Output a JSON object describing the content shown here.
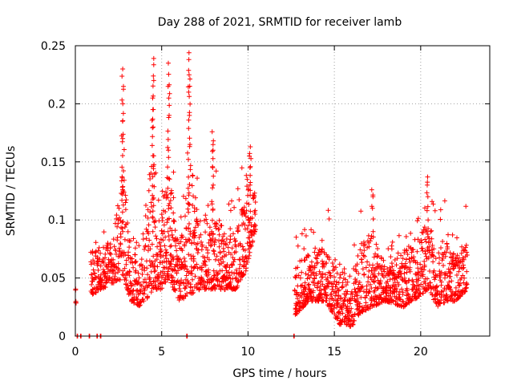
{
  "chart_data": {
    "type": "scatter",
    "title": "Day 288 of 2021, SRMTID for receiver lamb",
    "xlabel": "GPS time / hours",
    "ylabel": "SRMTID / TECUs",
    "xlim": [
      0,
      24
    ],
    "ylim": [
      0,
      0.25
    ],
    "x_ticks": [
      0,
      5,
      10,
      15,
      20
    ],
    "x_tick_labels": [
      "0",
      "5",
      "10",
      "15",
      "20"
    ],
    "y_ticks": [
      0,
      0.05,
      0.1,
      0.15,
      0.2,
      0.25
    ],
    "y_tick_labels": [
      "0",
      "0.05",
      "0.1",
      "0.15",
      "0.2",
      "0.25"
    ],
    "grid": true,
    "marker": "plus",
    "color": "#ff0000",
    "series": [
      {
        "name": "SRMTID",
        "description": "dense cloud of per-satellite SRMTID values, approx. 1-minute sampling over two observing blocks",
        "envelope": [
          {
            "x": 0.0,
            "low": 0.028,
            "high": 0.048
          },
          {
            "x": 0.9,
            "low": 0.035,
            "high": 0.095
          },
          {
            "x": 1.5,
            "low": 0.04,
            "high": 0.1
          },
          {
            "x": 2.2,
            "low": 0.045,
            "high": 0.11
          },
          {
            "x": 2.8,
            "low": 0.05,
            "high": 0.23
          },
          {
            "x": 3.2,
            "low": 0.03,
            "high": 0.12
          },
          {
            "x": 3.8,
            "low": 0.025,
            "high": 0.11
          },
          {
            "x": 4.5,
            "low": 0.04,
            "high": 0.24
          },
          {
            "x": 5.0,
            "low": 0.04,
            "high": 0.13
          },
          {
            "x": 5.4,
            "low": 0.05,
            "high": 0.235
          },
          {
            "x": 6.0,
            "low": 0.03,
            "high": 0.1
          },
          {
            "x": 6.6,
            "low": 0.035,
            "high": 0.245
          },
          {
            "x": 7.2,
            "low": 0.04,
            "high": 0.12
          },
          {
            "x": 7.9,
            "low": 0.04,
            "high": 0.175
          },
          {
            "x": 8.6,
            "low": 0.04,
            "high": 0.12
          },
          {
            "x": 9.3,
            "low": 0.04,
            "high": 0.13
          },
          {
            "x": 10.0,
            "low": 0.06,
            "high": 0.163
          },
          {
            "x": 10.4,
            "low": 0.09,
            "high": 0.15
          },
          {
            "x": 12.7,
            "low": 0.017,
            "high": 0.09
          },
          {
            "x": 13.5,
            "low": 0.03,
            "high": 0.095
          },
          {
            "x": 14.5,
            "low": 0.03,
            "high": 0.12
          },
          {
            "x": 15.3,
            "low": 0.01,
            "high": 0.085
          },
          {
            "x": 16.0,
            "low": 0.008,
            "high": 0.08
          },
          {
            "x": 16.5,
            "low": 0.02,
            "high": 0.11
          },
          {
            "x": 17.2,
            "low": 0.025,
            "high": 0.126
          },
          {
            "x": 18.0,
            "low": 0.03,
            "high": 0.08
          },
          {
            "x": 19.0,
            "low": 0.025,
            "high": 0.1
          },
          {
            "x": 20.0,
            "low": 0.035,
            "high": 0.12
          },
          {
            "x": 20.4,
            "low": 0.04,
            "high": 0.137
          },
          {
            "x": 21.0,
            "low": 0.025,
            "high": 0.1
          },
          {
            "x": 21.5,
            "low": 0.03,
            "high": 0.13
          },
          {
            "x": 22.0,
            "low": 0.03,
            "high": 0.09
          },
          {
            "x": 22.7,
            "low": 0.04,
            "high": 0.12
          }
        ],
        "peaks": [
          {
            "x": 2.75,
            "values": [
              0.17,
              0.185,
              0.2,
              0.215,
              0.23
            ]
          },
          {
            "x": 4.5,
            "values": [
              0.18,
              0.195,
              0.205,
              0.22,
              0.239
            ]
          },
          {
            "x": 5.4,
            "values": [
              0.16,
              0.19,
              0.205,
              0.215,
              0.235
            ]
          },
          {
            "x": 6.6,
            "values": [
              0.165,
              0.19,
              0.21,
              0.225,
              0.244
            ]
          },
          {
            "x": 7.95,
            "values": [
              0.13,
              0.145,
              0.16,
              0.176
            ]
          },
          {
            "x": 10.1,
            "values": [
              0.13,
              0.145,
              0.155,
              0.163
            ]
          },
          {
            "x": 17.2,
            "values": [
              0.11,
              0.12,
              0.126
            ]
          },
          {
            "x": 20.4,
            "values": [
              0.12,
              0.13,
              0.137
            ]
          }
        ],
        "zero_points_x": [
          0.1,
          0.3,
          0.8,
          1.25,
          1.45,
          6.45,
          12.65
        ]
      }
    ]
  }
}
